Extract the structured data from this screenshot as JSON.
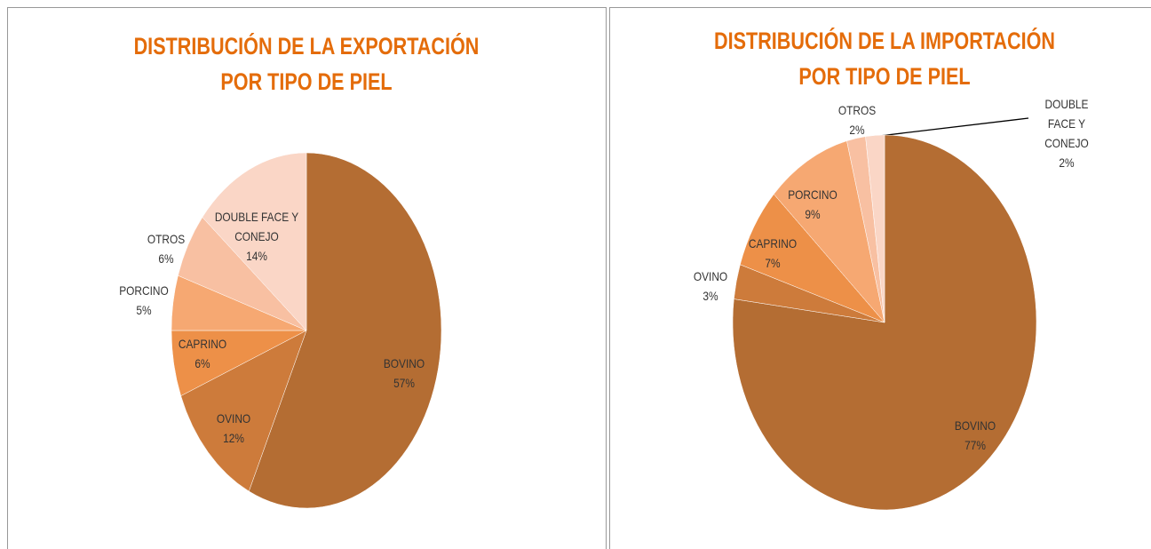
{
  "chart_data": [
    {
      "type": "pie",
      "title": "DISTRIBUCIÓN DE LA EXPORTACIÓN\nPOR TIPO DE PIEL",
      "categories": [
        "BOVINO",
        "OVINO",
        "CAPRINO",
        "PORCINO",
        "OTROS",
        "DOUBLE FACE Y\nCONEJO"
      ],
      "values": [
        57,
        12,
        6,
        5,
        6,
        14
      ],
      "value_labels": [
        "57%",
        "12%",
        "6%",
        "5%",
        "6%",
        "14%"
      ],
      "colors": [
        "#b46d33",
        "#cd7b3b",
        "#ed9048",
        "#f6a872",
        "#f8c0a2",
        "#fad6c6"
      ]
    },
    {
      "type": "pie",
      "title": "DISTRIBUCIÓN DE LA IMPORTACIÓN\nPOR TIPO DE PIEL",
      "categories": [
        "BOVINO",
        "OVINO",
        "CAPRINO",
        "PORCINO",
        "OTROS",
        "DOUBLE FACE Y\nCONEJO"
      ],
      "values": [
        77,
        3,
        7,
        9,
        2,
        2
      ],
      "value_labels": [
        "77%",
        "3%",
        "7%",
        "9%",
        "2%",
        "2%"
      ],
      "colors": [
        "#b46d33",
        "#cd7b3b",
        "#ed9048",
        "#f6a872",
        "#f8c0a2",
        "#fad6c6"
      ]
    }
  ]
}
